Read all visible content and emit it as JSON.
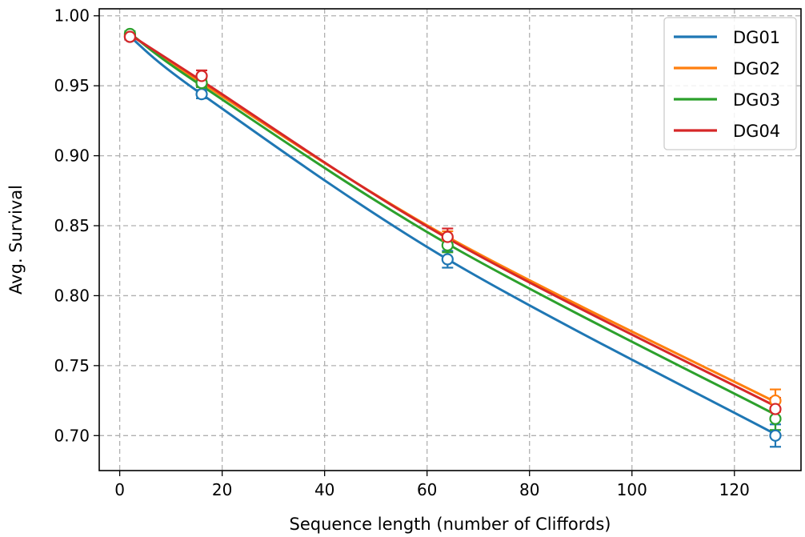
{
  "chart_data": {
    "type": "line",
    "title": "",
    "xlabel": "Sequence length (number of Cliffords)",
    "ylabel": "Avg. Survival",
    "xlim": [
      -4,
      133
    ],
    "ylim": [
      0.675,
      1.005
    ],
    "xticks": [
      0,
      20,
      40,
      60,
      80,
      100,
      120
    ],
    "yticks": [
      0.7,
      0.75,
      0.8,
      0.85,
      0.9,
      0.95,
      1.0
    ],
    "xtick_labels": [
      "0",
      "20",
      "40",
      "60",
      "80",
      "100",
      "120"
    ],
    "ytick_labels": [
      "0.70",
      "0.75",
      "0.80",
      "0.85",
      "0.90",
      "0.95",
      "1.00"
    ],
    "grid": true,
    "legend_position": "top-right",
    "x": [
      2,
      16,
      64,
      128
    ],
    "series": [
      {
        "name": "DG01",
        "color": "#1f77b4",
        "points": [
          0.985,
          0.944,
          0.826,
          0.7
        ],
        "errors": [
          0.002,
          0.003,
          0.006,
          0.008
        ],
        "fit": [
          0.9851,
          0.944,
          0.826,
          0.701
        ]
      },
      {
        "name": "DG02",
        "color": "#ff7f0e",
        "points": [
          0.986,
          0.952,
          0.841,
          0.725
        ],
        "errors": [
          0.002,
          0.003,
          0.005,
          0.008
        ],
        "fit": [
          0.987,
          0.952,
          0.842,
          0.724
        ]
      },
      {
        "name": "DG03",
        "color": "#2ca02c",
        "points": [
          0.987,
          0.952,
          0.836,
          0.712
        ],
        "errors": [
          0.002,
          0.003,
          0.005,
          0.008
        ],
        "fit": [
          0.9875,
          0.95,
          0.837,
          0.715
        ]
      },
      {
        "name": "DG04",
        "color": "#d62728",
        "points": [
          0.985,
          0.957,
          0.842,
          0.719
        ],
        "errors": [
          0.002,
          0.004,
          0.006,
          0.008
        ],
        "fit": [
          0.9865,
          0.9535,
          0.841,
          0.721
        ]
      }
    ]
  }
}
